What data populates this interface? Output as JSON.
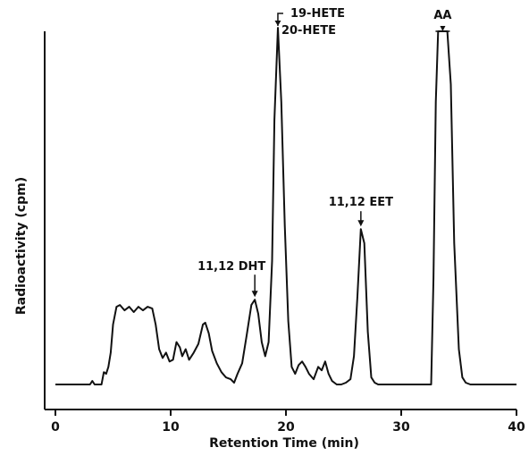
{
  "chart_data": {
    "type": "line",
    "title": "",
    "xlabel": "Retention Time (min)",
    "ylabel": "Radioactivity (cpm)",
    "xlim": [
      0,
      40
    ],
    "xticks": [
      0,
      10,
      20,
      30,
      40
    ],
    "xticklabels": [
      "0",
      "10",
      "20",
      "30",
      "40"
    ],
    "ylim": [
      0,
      100
    ],
    "grid": false,
    "legend": "none",
    "line_color": "#111111",
    "series": [
      {
        "x": [
          0,
          3.0,
          3.2,
          3.4,
          3.6,
          4.0,
          4.2,
          4.4,
          4.6,
          4.8,
          5.0,
          5.3,
          5.6,
          6.0,
          6.4,
          6.8,
          7.2,
          7.6,
          8.0,
          8.4,
          8.7,
          9.0,
          9.3,
          9.6,
          9.9,
          10.2,
          10.5,
          10.8,
          11.0,
          11.3,
          11.6,
          12.0,
          12.4,
          12.8,
          13.0,
          13.3,
          13.6,
          14.0,
          14.4,
          14.8,
          15.2,
          15.5,
          15.8,
          16.2,
          16.6,
          17.0,
          17.3,
          17.6,
          17.9,
          18.2,
          18.5,
          18.8,
          19.0,
          19.3,
          19.6,
          19.9,
          20.2,
          20.5,
          20.8,
          21.1,
          21.4,
          21.7,
          22.0,
          22.4,
          22.8,
          23.1,
          23.4,
          23.7,
          24.0,
          24.4,
          24.8,
          25.2,
          25.6,
          25.9,
          26.2,
          26.5,
          26.8,
          27.1,
          27.4,
          27.7,
          28.0,
          29.0,
          32.0,
          32.6,
          32.8,
          33.0,
          33.2,
          34.0,
          34.3,
          34.6,
          35.0,
          35.3,
          35.6,
          36.0,
          40.0
        ],
        "y": [
          0,
          0,
          1.0,
          0,
          0,
          0,
          3.5,
          3.0,
          5.0,
          9.0,
          17.0,
          22.0,
          22.5,
          21.0,
          22.0,
          20.5,
          22.0,
          21.0,
          22.0,
          21.5,
          17.0,
          10.0,
          7.5,
          9.0,
          6.5,
          7.0,
          12.0,
          10.5,
          8.0,
          10.0,
          7.0,
          9.0,
          11.5,
          17.0,
          17.5,
          14.5,
          9.5,
          6.0,
          3.5,
          2.0,
          1.5,
          0.5,
          3.0,
          6.0,
          14.0,
          22.5,
          24.0,
          20.0,
          12.0,
          8.0,
          12.0,
          35.0,
          75.0,
          101.0,
          80.0,
          45.0,
          18.0,
          5.0,
          3.0,
          5.5,
          6.5,
          5.0,
          3.0,
          1.5,
          5.0,
          4.0,
          6.5,
          3.0,
          1.0,
          0,
          0,
          0.5,
          1.5,
          8.0,
          25.0,
          44.0,
          40.0,
          15.0,
          2.0,
          0.5,
          0,
          0,
          0,
          0,
          30.0,
          80.0,
          100.0,
          100.0,
          85.0,
          40.0,
          10.0,
          2.0,
          0.5,
          0,
          0
        ]
      }
    ],
    "annotations": [
      {
        "text": "11,12 DHT",
        "x": 17.3,
        "y": 24.0
      },
      {
        "text": "19-HETE",
        "x": 19.3,
        "y": 101.0
      },
      {
        "text": "20-HETE",
        "x": 19.3,
        "y": 101.0
      },
      {
        "text": "11,12 EET",
        "x": 26.5,
        "y": 44.0
      },
      {
        "text": "AA",
        "x": 33.6,
        "y": 100.0
      }
    ]
  }
}
